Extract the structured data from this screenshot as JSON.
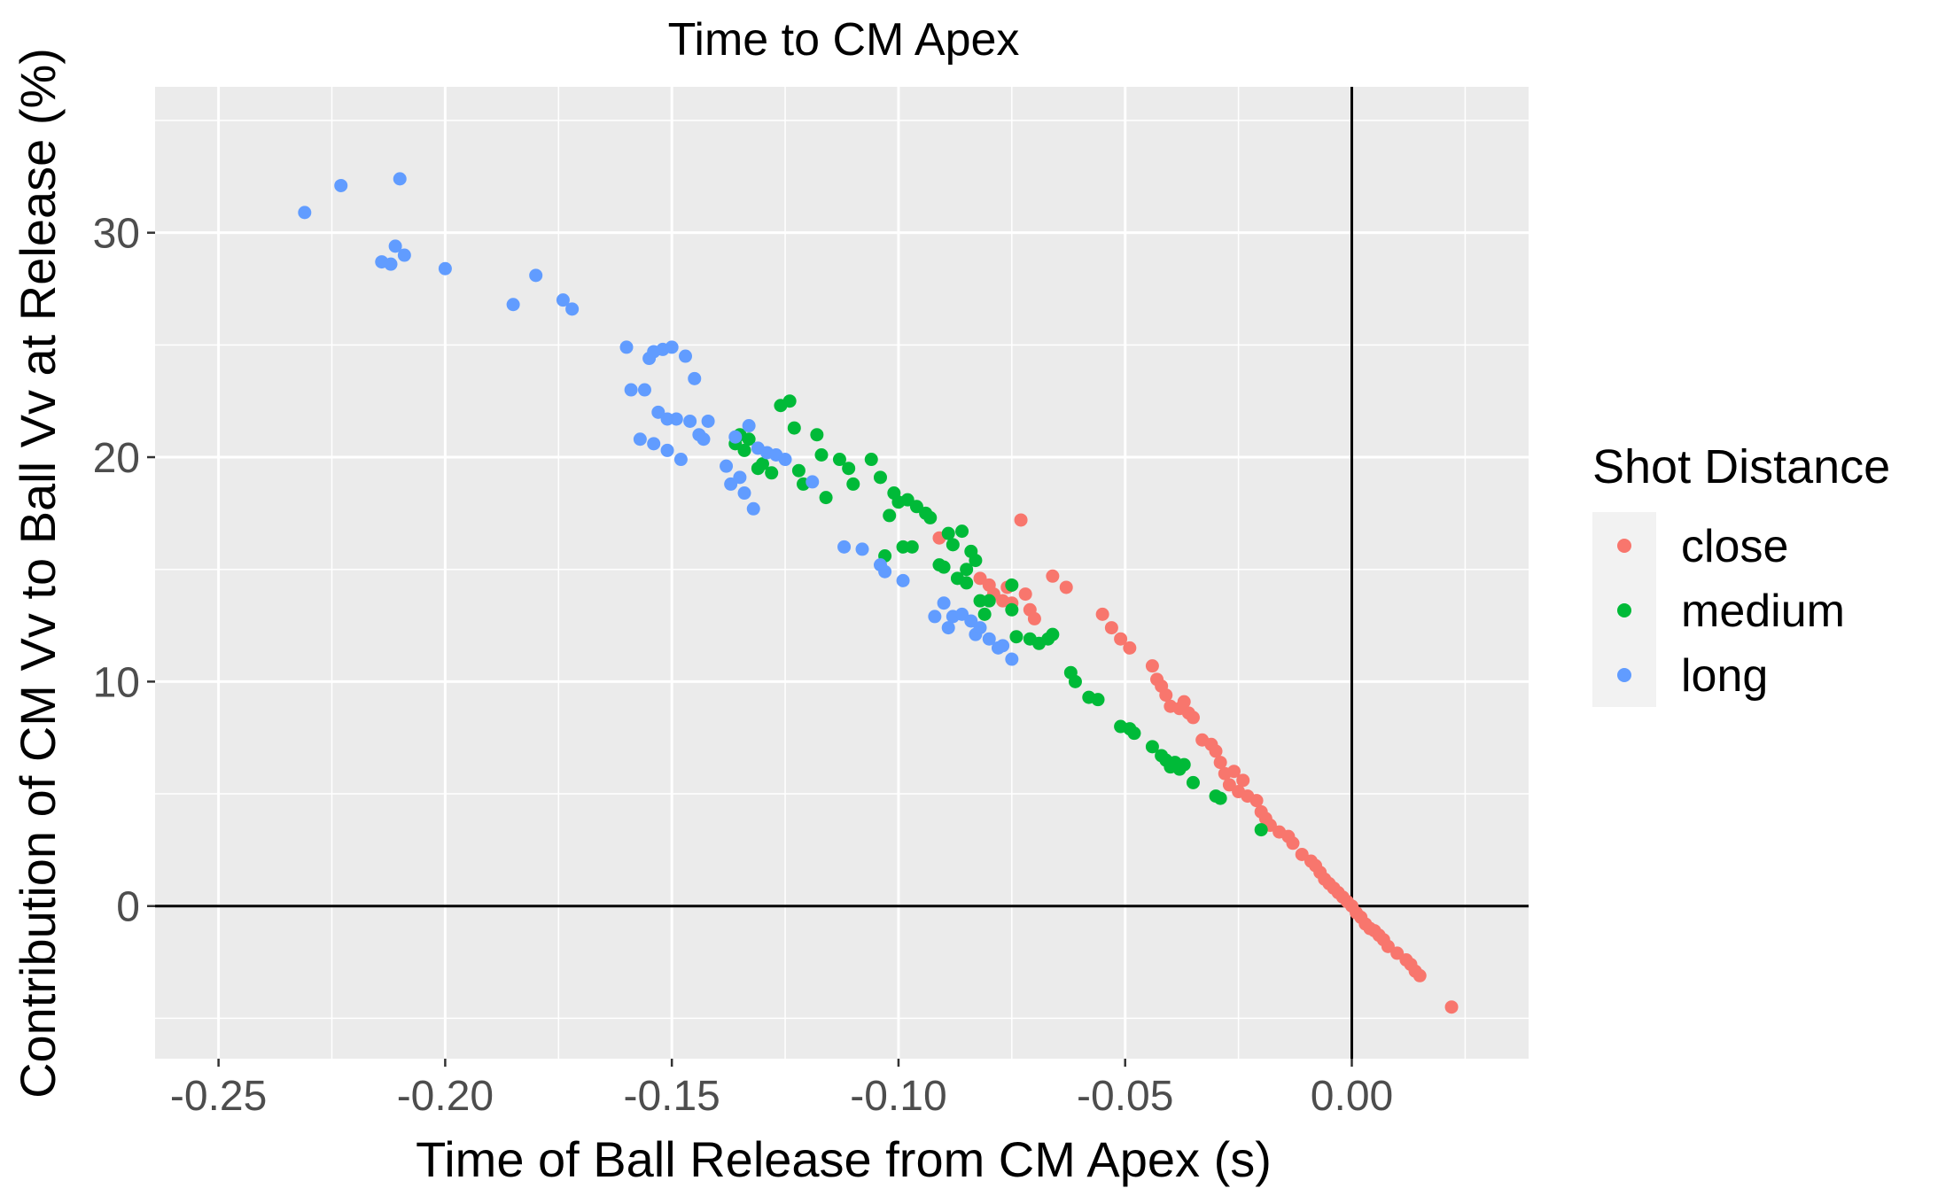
{
  "chart_data": {
    "type": "scatter",
    "title": "Time to CM Apex",
    "xlabel": "Time of Ball Release from CM Apex (s)",
    "ylabel": "Contribution of CM Vv to Ball Vv at Release (%)",
    "xlim": [
      -0.264,
      0.039
    ],
    "ylim": [
      -6.8,
      36.5
    ],
    "x_ticks": [
      -0.25,
      -0.2,
      -0.15,
      -0.1,
      -0.05,
      0.0
    ],
    "x_tick_labels": [
      "-0.25",
      "-0.20",
      "-0.15",
      "-0.10",
      "-0.05",
      "0.00"
    ],
    "y_ticks": [
      0,
      10,
      20,
      30
    ],
    "y_tick_labels": [
      "0",
      "10",
      "20",
      "30"
    ],
    "reference_lines": {
      "x": 0,
      "y": 0
    },
    "grid": true,
    "background": "#ebebeb",
    "legend": {
      "title": "Shot Distance",
      "position": "right"
    },
    "series": [
      {
        "name": "close",
        "color": "#f8766d",
        "points": [
          [
            -0.091,
            16.4
          ],
          [
            -0.082,
            14.6
          ],
          [
            -0.08,
            14.3
          ],
          [
            -0.079,
            13.9
          ],
          [
            -0.077,
            13.6
          ],
          [
            -0.076,
            14.2
          ],
          [
            -0.075,
            13.5
          ],
          [
            -0.073,
            17.2
          ],
          [
            -0.072,
            13.9
          ],
          [
            -0.071,
            13.2
          ],
          [
            -0.07,
            12.8
          ],
          [
            -0.066,
            14.7
          ],
          [
            -0.063,
            14.2
          ],
          [
            -0.055,
            13.0
          ],
          [
            -0.053,
            12.4
          ],
          [
            -0.051,
            11.9
          ],
          [
            -0.049,
            11.5
          ],
          [
            -0.044,
            10.7
          ],
          [
            -0.043,
            10.1
          ],
          [
            -0.042,
            9.8
          ],
          [
            -0.041,
            9.4
          ],
          [
            -0.04,
            8.9
          ],
          [
            -0.038,
            8.8
          ],
          [
            -0.037,
            9.1
          ],
          [
            -0.036,
            8.6
          ],
          [
            -0.035,
            8.4
          ],
          [
            -0.033,
            7.4
          ],
          [
            -0.031,
            7.2
          ],
          [
            -0.03,
            6.9
          ],
          [
            -0.029,
            6.4
          ],
          [
            -0.028,
            5.9
          ],
          [
            -0.027,
            5.4
          ],
          [
            -0.026,
            6.0
          ],
          [
            -0.025,
            5.1
          ],
          [
            -0.024,
            5.6
          ],
          [
            -0.023,
            4.9
          ],
          [
            -0.021,
            4.7
          ],
          [
            -0.02,
            4.2
          ],
          [
            -0.019,
            3.9
          ],
          [
            -0.018,
            3.6
          ],
          [
            -0.016,
            3.3
          ],
          [
            -0.014,
            3.1
          ],
          [
            -0.013,
            2.8
          ],
          [
            -0.011,
            2.3
          ],
          [
            -0.009,
            2.0
          ],
          [
            -0.008,
            1.8
          ],
          [
            -0.007,
            1.5
          ],
          [
            -0.006,
            1.2
          ],
          [
            -0.005,
            1.0
          ],
          [
            -0.004,
            0.8
          ],
          [
            -0.003,
            0.6
          ],
          [
            -0.002,
            0.4
          ],
          [
            -0.001,
            0.2
          ],
          [
            0.0,
            0.0
          ],
          [
            0.001,
            -0.3
          ],
          [
            0.002,
            -0.5
          ],
          [
            0.003,
            -0.8
          ],
          [
            0.004,
            -1.0
          ],
          [
            0.005,
            -1.1
          ],
          [
            0.006,
            -1.3
          ],
          [
            0.007,
            -1.5
          ],
          [
            0.008,
            -1.8
          ],
          [
            0.01,
            -2.1
          ],
          [
            0.012,
            -2.4
          ],
          [
            0.013,
            -2.6
          ],
          [
            0.014,
            -2.9
          ],
          [
            0.015,
            -3.1
          ],
          [
            0.022,
            -4.5
          ]
        ]
      },
      {
        "name": "medium",
        "color": "#00ba38",
        "points": [
          [
            -0.136,
            20.6
          ],
          [
            -0.135,
            21.0
          ],
          [
            -0.134,
            20.3
          ],
          [
            -0.133,
            20.8
          ],
          [
            -0.131,
            19.5
          ],
          [
            -0.13,
            19.7
          ],
          [
            -0.128,
            19.3
          ],
          [
            -0.126,
            22.3
          ],
          [
            -0.124,
            22.5
          ],
          [
            -0.123,
            21.3
          ],
          [
            -0.122,
            19.4
          ],
          [
            -0.121,
            18.8
          ],
          [
            -0.118,
            21.0
          ],
          [
            -0.117,
            20.1
          ],
          [
            -0.116,
            18.2
          ],
          [
            -0.113,
            19.9
          ],
          [
            -0.111,
            19.5
          ],
          [
            -0.11,
            18.8
          ],
          [
            -0.106,
            19.9
          ],
          [
            -0.104,
            19.1
          ],
          [
            -0.103,
            15.6
          ],
          [
            -0.102,
            17.4
          ],
          [
            -0.101,
            18.4
          ],
          [
            -0.1,
            18.0
          ],
          [
            -0.099,
            16.0
          ],
          [
            -0.098,
            18.1
          ],
          [
            -0.097,
            16.0
          ],
          [
            -0.096,
            17.8
          ],
          [
            -0.094,
            17.5
          ],
          [
            -0.093,
            17.3
          ],
          [
            -0.091,
            15.2
          ],
          [
            -0.09,
            15.1
          ],
          [
            -0.089,
            16.6
          ],
          [
            -0.088,
            16.1
          ],
          [
            -0.087,
            14.6
          ],
          [
            -0.086,
            16.7
          ],
          [
            -0.085,
            15.0
          ],
          [
            -0.085,
            14.4
          ],
          [
            -0.084,
            15.8
          ],
          [
            -0.083,
            15.4
          ],
          [
            -0.082,
            13.6
          ],
          [
            -0.081,
            13.0
          ],
          [
            -0.08,
            13.6
          ],
          [
            -0.075,
            14.3
          ],
          [
            -0.075,
            13.2
          ],
          [
            -0.074,
            12.0
          ],
          [
            -0.071,
            11.9
          ],
          [
            -0.069,
            11.7
          ],
          [
            -0.067,
            11.9
          ],
          [
            -0.066,
            12.1
          ],
          [
            -0.062,
            10.4
          ],
          [
            -0.061,
            10.0
          ],
          [
            -0.058,
            9.3
          ],
          [
            -0.056,
            9.2
          ],
          [
            -0.051,
            8.0
          ],
          [
            -0.049,
            7.9
          ],
          [
            -0.048,
            7.7
          ],
          [
            -0.044,
            7.1
          ],
          [
            -0.042,
            6.7
          ],
          [
            -0.041,
            6.5
          ],
          [
            -0.04,
            6.2
          ],
          [
            -0.039,
            6.4
          ],
          [
            -0.038,
            6.1
          ],
          [
            -0.037,
            6.3
          ],
          [
            -0.035,
            5.5
          ],
          [
            -0.03,
            4.9
          ],
          [
            -0.029,
            4.8
          ],
          [
            -0.02,
            3.4
          ]
        ]
      },
      {
        "name": "long",
        "color": "#619cff",
        "points": [
          [
            -0.231,
            30.9
          ],
          [
            -0.223,
            32.1
          ],
          [
            -0.214,
            28.7
          ],
          [
            -0.212,
            28.6
          ],
          [
            -0.211,
            29.4
          ],
          [
            -0.21,
            32.4
          ],
          [
            -0.209,
            29.0
          ],
          [
            -0.2,
            28.4
          ],
          [
            -0.185,
            26.8
          ],
          [
            -0.18,
            28.1
          ],
          [
            -0.174,
            27.0
          ],
          [
            -0.172,
            26.6
          ],
          [
            -0.16,
            24.9
          ],
          [
            -0.159,
            23.0
          ],
          [
            -0.157,
            20.8
          ],
          [
            -0.156,
            23.0
          ],
          [
            -0.155,
            24.4
          ],
          [
            -0.154,
            24.7
          ],
          [
            -0.154,
            20.6
          ],
          [
            -0.153,
            22.0
          ],
          [
            -0.152,
            24.8
          ],
          [
            -0.151,
            21.7
          ],
          [
            -0.151,
            20.3
          ],
          [
            -0.15,
            24.9
          ],
          [
            -0.149,
            21.7
          ],
          [
            -0.148,
            19.9
          ],
          [
            -0.147,
            24.5
          ],
          [
            -0.146,
            21.6
          ],
          [
            -0.145,
            23.5
          ],
          [
            -0.144,
            21.0
          ],
          [
            -0.143,
            20.8
          ],
          [
            -0.142,
            21.6
          ],
          [
            -0.138,
            19.6
          ],
          [
            -0.137,
            18.8
          ],
          [
            -0.136,
            20.9
          ],
          [
            -0.135,
            19.1
          ],
          [
            -0.134,
            18.4
          ],
          [
            -0.133,
            21.4
          ],
          [
            -0.132,
            17.7
          ],
          [
            -0.131,
            20.4
          ],
          [
            -0.129,
            20.2
          ],
          [
            -0.127,
            20.1
          ],
          [
            -0.125,
            19.9
          ],
          [
            -0.119,
            18.9
          ],
          [
            -0.112,
            16.0
          ],
          [
            -0.108,
            15.9
          ],
          [
            -0.104,
            15.2
          ],
          [
            -0.103,
            14.9
          ],
          [
            -0.099,
            14.5
          ],
          [
            -0.092,
            12.9
          ],
          [
            -0.09,
            13.5
          ],
          [
            -0.089,
            12.4
          ],
          [
            -0.088,
            12.9
          ],
          [
            -0.086,
            13.0
          ],
          [
            -0.084,
            12.7
          ],
          [
            -0.083,
            12.1
          ],
          [
            -0.082,
            12.4
          ],
          [
            -0.08,
            11.9
          ],
          [
            -0.078,
            11.5
          ],
          [
            -0.077,
            11.6
          ],
          [
            -0.075,
            11.0
          ]
        ]
      }
    ]
  }
}
